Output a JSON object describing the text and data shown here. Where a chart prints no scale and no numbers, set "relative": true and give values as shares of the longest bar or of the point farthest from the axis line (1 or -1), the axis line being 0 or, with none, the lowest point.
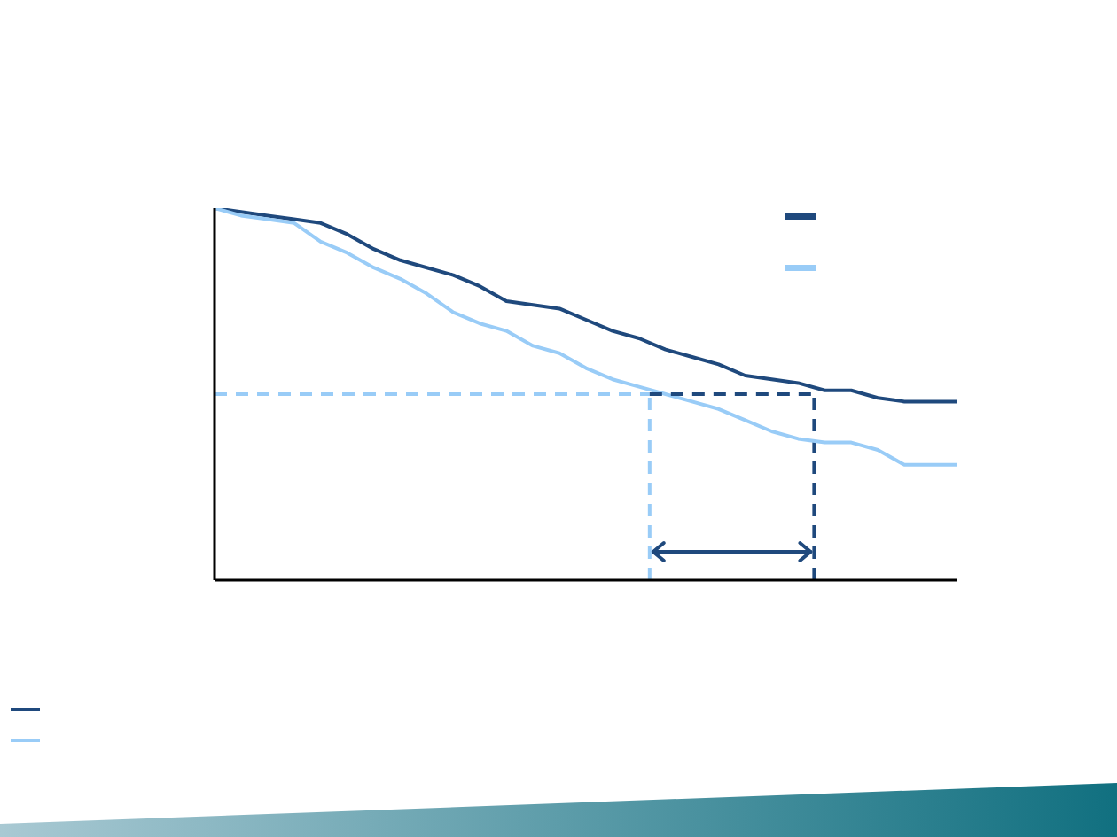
{
  "chart_data": {
    "type": "line",
    "relative": true,
    "marker": "none",
    "grid": false,
    "categories": [
      null,
      null,
      null,
      null,
      null,
      null,
      null,
      null,
      null,
      null,
      null,
      null,
      null,
      null,
      null,
      null,
      null,
      null,
      null,
      null,
      null,
      null,
      null,
      null,
      null,
      null,
      null,
      null,
      null,
      null,
      null,
      null,
      null,
      null,
      null,
      null,
      null,
      null,
      null,
      null,
      null,
      null,
      null,
      null,
      null,
      null,
      null,
      null,
      null,
      null,
      null,
      null,
      null,
      null,
      null,
      null,
      null,
      null,
      null,
      null,
      null,
      null,
      null,
      null,
      null,
      null,
      null,
      null,
      null,
      null,
      null,
      null,
      null,
      null,
      null,
      null,
      null,
      null,
      null,
      null,
      null,
      null,
      null,
      null,
      null,
      null,
      null,
      null,
      null,
      null,
      null,
      null,
      null,
      null,
      null,
      null,
      null,
      null,
      null,
      null,
      null,
      null,
      null,
      null,
      null,
      null,
      null,
      null,
      null,
      null,
      null,
      null,
      null,
      null,
      null,
      null,
      null,
      null,
      null,
      null,
      null,
      null,
      null,
      null,
      null,
      null,
      null,
      null,
      null,
      null,
      null,
      null,
      null,
      null,
      null,
      null,
      null,
      null,
      null,
      null,
      null
    ],
    "series": [
      {
        "color": "#1f497d",
        "values": [
          1.0,
          null,
          null,
          null,
          null,
          0.99,
          null,
          null,
          null,
          null,
          0.98,
          null,
          null,
          null,
          null,
          0.97,
          null,
          null,
          null,
          null,
          0.96,
          null,
          null,
          null,
          null,
          0.93,
          null,
          null,
          null,
          null,
          0.89,
          null,
          null,
          null,
          null,
          0.86,
          null,
          null,
          null,
          null,
          0.84,
          null,
          null,
          null,
          null,
          0.82,
          null,
          null,
          null,
          null,
          0.79,
          null,
          null,
          null,
          null,
          0.75,
          null,
          null,
          null,
          null,
          0.74,
          null,
          null,
          null,
          null,
          0.73,
          null,
          null,
          null,
          null,
          0.7,
          null,
          null,
          null,
          null,
          0.67,
          null,
          null,
          null,
          null,
          0.65,
          null,
          null,
          null,
          null,
          0.62,
          null,
          null,
          null,
          null,
          0.6,
          null,
          null,
          null,
          null,
          0.58,
          null,
          null,
          null,
          null,
          0.55,
          null,
          null,
          null,
          null,
          0.54,
          null,
          null,
          null,
          null,
          0.53,
          null,
          null,
          null,
          null,
          0.51,
          null,
          null,
          null,
          null,
          0.51,
          null,
          null,
          null,
          null,
          0.49,
          null,
          null,
          null,
          null,
          0.48,
          null,
          null,
          null,
          null,
          0.48,
          null,
          null,
          null,
          null,
          0.48
        ]
      },
      {
        "color": "#99ccf7",
        "values": [
          1.0,
          null,
          null,
          null,
          null,
          0.98,
          null,
          null,
          null,
          null,
          0.97,
          null,
          null,
          null,
          null,
          0.96,
          null,
          null,
          null,
          null,
          0.91,
          null,
          null,
          null,
          null,
          0.88,
          null,
          null,
          null,
          null,
          0.84,
          null,
          null,
          null,
          null,
          0.81,
          null,
          null,
          null,
          null,
          0.77,
          null,
          null,
          null,
          null,
          0.72,
          null,
          null,
          null,
          null,
          0.69,
          null,
          null,
          null,
          null,
          0.67,
          null,
          null,
          null,
          null,
          0.63,
          null,
          null,
          null,
          null,
          0.61,
          null,
          null,
          null,
          null,
          0.57,
          null,
          null,
          null,
          null,
          0.54,
          null,
          null,
          null,
          null,
          0.52,
          null,
          null,
          null,
          null,
          0.5,
          null,
          null,
          null,
          null,
          0.48,
          null,
          null,
          null,
          null,
          0.46,
          null,
          null,
          null,
          null,
          0.43,
          null,
          null,
          null,
          null,
          0.4,
          null,
          null,
          null,
          null,
          0.38,
          null,
          null,
          null,
          null,
          0.37,
          null,
          null,
          null,
          null,
          0.37,
          null,
          null,
          null,
          null,
          0.35,
          null,
          null,
          null,
          null,
          0.31,
          null,
          null,
          null,
          null,
          0.31,
          null,
          null,
          null,
          null,
          0.31
        ]
      },
      {
        "color": "#99ccf7",
        "line_style": "dashed",
        "values": [
          0.5,
          null,
          null,
          null,
          null,
          null,
          null,
          null,
          null,
          null,
          null,
          null,
          null,
          null,
          null,
          null,
          null,
          null,
          null,
          null,
          null,
          null,
          null,
          null,
          null,
          null,
          null,
          null,
          null,
          null,
          null,
          null,
          null,
          null,
          null,
          null,
          null,
          null,
          null,
          null,
          null,
          null,
          null,
          null,
          null,
          null,
          null,
          null,
          null,
          null,
          null,
          null,
          null,
          null,
          null,
          null,
          null,
          null,
          null,
          null,
          null,
          null,
          null,
          null,
          null,
          null,
          null,
          null,
          null,
          null,
          null,
          null,
          null,
          null,
          null,
          null,
          null,
          null,
          null,
          null,
          null,
          null,
          0.5,
          null,
          null,
          null,
          null,
          null,
          null,
          null,
          null,
          null,
          null,
          null,
          null,
          null,
          null,
          null,
          null,
          null,
          null,
          null,
          null,
          null,
          null,
          null,
          null,
          null,
          null,
          null,
          null,
          null,
          null,
          null,
          null,
          null,
          null,
          null,
          null,
          null,
          null,
          null,
          null,
          null,
          null,
          null,
          null,
          null,
          null,
          null,
          null,
          null,
          null,
          null,
          null,
          null,
          null,
          null,
          null,
          null,
          null
        ]
      },
      {
        "color": "#1f497d",
        "line_style": "dashed",
        "values": [
          null,
          null,
          null,
          null,
          null,
          null,
          null,
          null,
          null,
          null,
          null,
          null,
          null,
          null,
          null,
          null,
          null,
          null,
          null,
          null,
          null,
          null,
          null,
          null,
          null,
          null,
          null,
          null,
          null,
          null,
          null,
          null,
          null,
          null,
          null,
          null,
          null,
          null,
          null,
          null,
          null,
          null,
          null,
          null,
          null,
          null,
          null,
          null,
          null,
          null,
          null,
          null,
          null,
          null,
          null,
          null,
          null,
          null,
          null,
          null,
          null,
          null,
          null,
          null,
          null,
          null,
          null,
          null,
          null,
          null,
          null,
          null,
          null,
          null,
          null,
          null,
          null,
          null,
          null,
          null,
          null,
          null,
          0.5,
          null,
          null,
          null,
          null,
          null,
          null,
          null,
          null,
          null,
          null,
          null,
          null,
          null,
          null,
          null,
          null,
          null,
          null,
          null,
          null,
          null,
          null,
          null,
          null,
          null,
          null,
          null,
          null,
          null,
          null,
          0.5,
          null,
          null,
          null,
          null,
          null,
          null,
          null,
          null,
          null,
          null,
          null,
          null,
          null,
          null,
          null,
          null,
          null,
          null,
          null,
          null,
          null,
          null,
          null,
          null,
          null,
          null,
          null
        ]
      }
    ]
  }
}
